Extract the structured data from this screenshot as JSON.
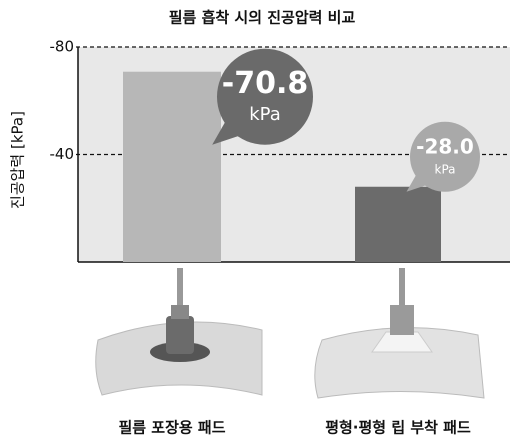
{
  "chart_data": {
    "type": "bar",
    "title": "필름 흡착 시의 진공압력 비교",
    "y_label": "진공압력 [kPa]",
    "categories": [
      "필름 포장용 패드",
      "평형·평형 립 부착 패드"
    ],
    "values": [
      -70.8,
      -28.0
    ],
    "value_labels": [
      "-70.8",
      "-28.0"
    ],
    "value_unit": "kPa",
    "colors": [
      "#b7b7b7",
      "#6b6b6b"
    ],
    "ylim": [
      0,
      -80
    ],
    "yticks": [
      -80,
      -40
    ],
    "grid": true
  }
}
